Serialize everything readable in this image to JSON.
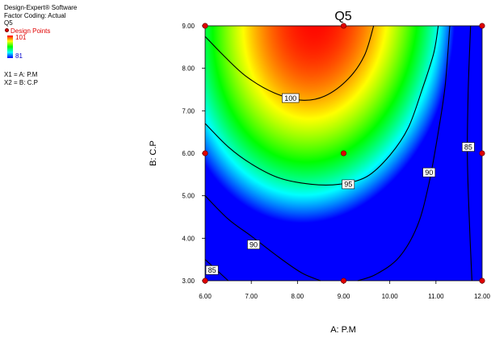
{
  "info": {
    "software": "Design-Expert® Software",
    "coding": "Factor Coding: Actual",
    "response": "Q5",
    "design_points_label": "Design Points",
    "legend_high": "101",
    "legend_low": "81",
    "x1": "X1 = A: P.M",
    "x2": "X2 = B: C.P"
  },
  "colors": {
    "red": "#ff0000",
    "blue": "#0000ff",
    "design_point": "#e00000"
  },
  "chart_data": {
    "type": "heatmap",
    "subtype": "contour",
    "title": "Q5",
    "xlabel": "A: P.M",
    "ylabel": "B: C.P",
    "xlim": [
      6.0,
      12.0
    ],
    "ylim": [
      3.0,
      9.0
    ],
    "xticks": [
      "6.00",
      "7.00",
      "8.00",
      "9.00",
      "10.00",
      "11.00",
      "12.00"
    ],
    "yticks": [
      "3.00",
      "4.00",
      "5.00",
      "6.00",
      "7.00",
      "8.00",
      "9.00"
    ],
    "color_range": [
      81,
      101
    ],
    "contour_labels": [
      {
        "label": "100",
        "x": 7.85,
        "y": 7.3
      },
      {
        "label": "95",
        "x": 9.1,
        "y": 5.27
      },
      {
        "label": "90",
        "x": 7.05,
        "y": 3.85
      },
      {
        "label": "90",
        "x": 10.85,
        "y": 5.55
      },
      {
        "label": "85",
        "x": 6.15,
        "y": 3.25
      },
      {
        "label": "85",
        "x": 11.7,
        "y": 6.15
      }
    ],
    "contours": [
      {
        "level": 100,
        "points": [
          [
            6.0,
            8.75
          ],
          [
            6.4,
            8.3
          ],
          [
            6.9,
            7.8
          ],
          [
            7.5,
            7.42
          ],
          [
            8.1,
            7.25
          ],
          [
            8.6,
            7.35
          ],
          [
            9.1,
            7.75
          ],
          [
            9.45,
            8.3
          ],
          [
            9.65,
            9.0
          ]
        ]
      },
      {
        "level": 95,
        "points": [
          [
            6.0,
            6.7
          ],
          [
            6.5,
            6.15
          ],
          [
            7.0,
            5.75
          ],
          [
            7.6,
            5.42
          ],
          [
            8.3,
            5.27
          ],
          [
            8.9,
            5.27
          ],
          [
            9.5,
            5.45
          ],
          [
            10.0,
            5.95
          ],
          [
            10.4,
            6.6
          ],
          [
            10.7,
            7.5
          ],
          [
            10.95,
            8.35
          ],
          [
            11.05,
            9.0
          ]
        ]
      },
      {
        "level": 90,
        "points": [
          [
            6.0,
            5.0
          ],
          [
            6.5,
            4.45
          ],
          [
            7.0,
            4.05
          ],
          [
            7.6,
            3.55
          ],
          [
            8.1,
            3.18
          ],
          [
            8.5,
            3.0
          ]
        ]
      },
      {
        "level": 90,
        "points": [
          [
            9.3,
            3.0
          ],
          [
            9.7,
            3.15
          ],
          [
            10.2,
            3.55
          ],
          [
            10.6,
            4.3
          ],
          [
            10.85,
            5.3
          ],
          [
            11.05,
            6.5
          ],
          [
            11.2,
            7.6
          ],
          [
            11.3,
            9.0
          ]
        ]
      },
      {
        "level": 85,
        "points": [
          [
            6.0,
            3.5
          ],
          [
            6.25,
            3.25
          ],
          [
            6.5,
            3.0
          ]
        ]
      },
      {
        "level": 85,
        "points": [
          [
            11.78,
            3.0
          ],
          [
            11.72,
            4.5
          ],
          [
            11.68,
            6.0
          ],
          [
            11.7,
            7.5
          ],
          [
            11.75,
            9.0
          ]
        ]
      }
    ],
    "design_points": [
      {
        "x": 6.0,
        "y": 9.0
      },
      {
        "x": 9.0,
        "y": 9.0
      },
      {
        "x": 12.0,
        "y": 9.0
      },
      {
        "x": 6.0,
        "y": 6.0
      },
      {
        "x": 9.0,
        "y": 6.0
      },
      {
        "x": 12.0,
        "y": 6.0
      },
      {
        "x": 6.0,
        "y": 3.0
      },
      {
        "x": 9.0,
        "y": 3.0
      },
      {
        "x": 12.0,
        "y": 3.0
      }
    ]
  }
}
